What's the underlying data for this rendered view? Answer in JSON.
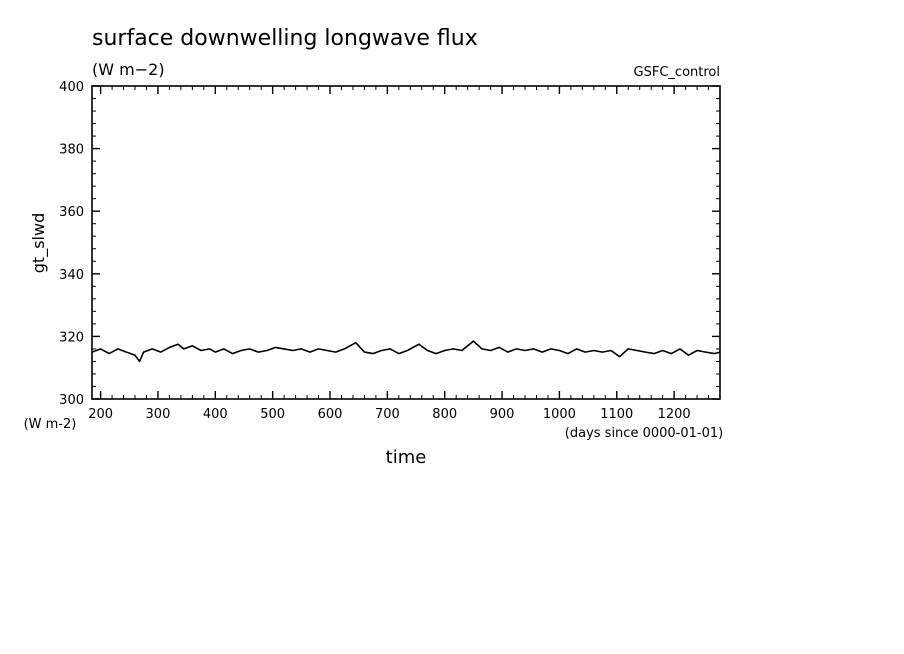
{
  "header": {
    "title": "surface downwelling longwave flux",
    "units": "(W m−2)",
    "dataset": "GSFC_control"
  },
  "chart_data": {
    "type": "line",
    "title": "surface downwelling longwave flux",
    "subtitle": "(W m−2)",
    "dataset_label": "GSFC_control",
    "xlabel": "time",
    "xunits": "(days since 0000-01-01)",
    "ylabel": "gt_slwd",
    "yunits": "(W m-2)",
    "xlim": [
      185,
      1280
    ],
    "ylim": [
      300,
      400
    ],
    "xticks": [
      200,
      300,
      400,
      500,
      600,
      700,
      800,
      900,
      1000,
      1100,
      1200
    ],
    "yticks": [
      300,
      320,
      340,
      360,
      380,
      400
    ],
    "grid": false,
    "line_color": "#000000",
    "series": [
      {
        "x": [
          185,
          200,
          215,
          230,
          245,
          260,
          268,
          275,
          290,
          305,
          320,
          335,
          345,
          360,
          375,
          390,
          400,
          415,
          430,
          445,
          460,
          475,
          490,
          505,
          520,
          535,
          550,
          565,
          580,
          595,
          610,
          625,
          645,
          660,
          675,
          690,
          705,
          720,
          735,
          755,
          770,
          785,
          800,
          815,
          830,
          850,
          865,
          880,
          895,
          910,
          925,
          940,
          955,
          970,
          985,
          1000,
          1015,
          1030,
          1045,
          1060,
          1075,
          1090,
          1105,
          1120,
          1135,
          1150,
          1165,
          1180,
          1195,
          1210,
          1225,
          1240,
          1255,
          1270,
          1280
        ],
        "y": [
          315,
          316,
          314.5,
          316,
          315,
          314,
          312,
          315,
          316,
          315,
          316.5,
          317.5,
          316,
          317,
          315.5,
          316,
          315,
          316,
          314.5,
          315.5,
          316,
          315,
          315.5,
          316.5,
          316,
          315.5,
          316,
          315,
          316,
          315.5,
          315,
          316,
          318,
          315,
          314.5,
          315.5,
          316,
          314.5,
          315.5,
          317.5,
          315.5,
          314.5,
          315.5,
          316,
          315.5,
          318.5,
          316,
          315.5,
          316.5,
          315,
          316,
          315.5,
          316,
          315,
          316,
          315.5,
          314.5,
          316,
          315,
          315.5,
          315,
          315.5,
          313.5,
          316,
          315.5,
          315,
          314.5,
          315.5,
          314.5,
          316,
          314,
          315.5,
          315,
          314.5,
          315
        ]
      }
    ]
  }
}
